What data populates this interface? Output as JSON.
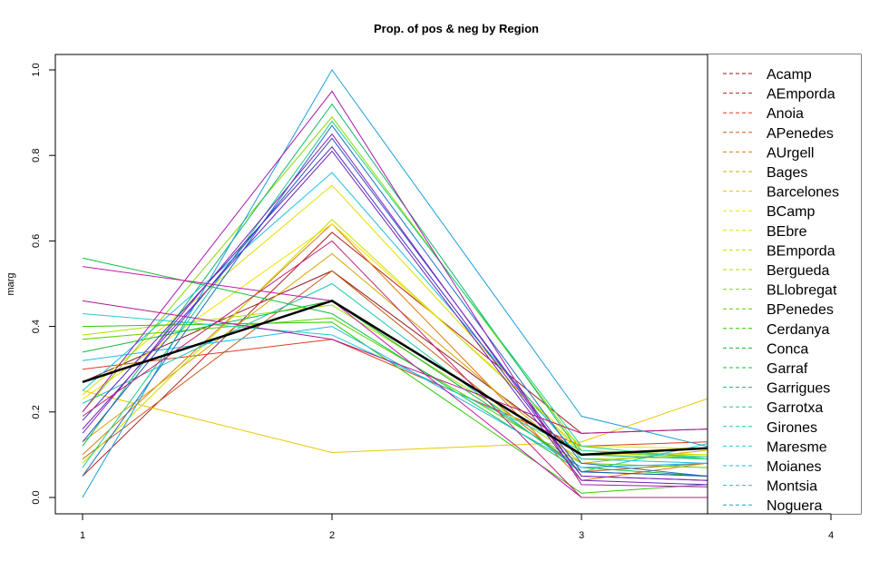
{
  "chart_data": {
    "type": "line",
    "title": "Prop. of pos & neg by Region",
    "xlabel": "",
    "ylabel": "marg",
    "x": [
      1,
      2,
      3,
      4
    ],
    "x_ticks": [
      "1",
      "2",
      "3",
      "4"
    ],
    "y_ticks": [
      "0.0",
      "0.2",
      "0.4",
      "0.6",
      "0.8",
      "1.0"
    ],
    "xlim": [
      1,
      4
    ],
    "ylim": [
      0,
      1
    ],
    "grid": false,
    "legend_position": "right",
    "series": [
      {
        "name": "Acamp",
        "color": "#8b1a1a",
        "values": [
          0.27,
          0.53,
          0.1,
          0.13
        ]
      },
      {
        "name": "AEmporda",
        "color": "#b22222",
        "values": [
          0.05,
          0.62,
          0.15,
          0.17
        ]
      },
      {
        "name": "Anoia",
        "color": "#e03c1f",
        "values": [
          0.3,
          0.37,
          0.12,
          0.14
        ]
      },
      {
        "name": "APenedes",
        "color": "#c85a1a",
        "values": [
          0.09,
          0.53,
          0.06,
          0.1
        ]
      },
      {
        "name": "AUrgell",
        "color": "#e07b10",
        "values": [
          0.1,
          0.64,
          0.04,
          0.12
        ]
      },
      {
        "name": "Bages",
        "color": "#d7a300",
        "values": [
          0.13,
          0.57,
          0.08,
          0.14
        ]
      },
      {
        "name": "Barcelones",
        "color": "#e8c800",
        "values": [
          0.25,
          0.105,
          0.13,
          0.33
        ]
      },
      {
        "name": "BCamp",
        "color": "#f2e200",
        "values": [
          0.23,
          0.64,
          0.12,
          0.11
        ]
      },
      {
        "name": "BEbre",
        "color": "#e0e000",
        "values": [
          0.24,
          0.73,
          0.1,
          0.1
        ]
      },
      {
        "name": "BEmporda",
        "color": "#c8e000",
        "values": [
          0.08,
          0.65,
          0.11,
          0.09
        ]
      },
      {
        "name": "Bergueda",
        "color": "#a8e000",
        "values": [
          0.38,
          0.45,
          0.09,
          0.1
        ]
      },
      {
        "name": "BLlobregat",
        "color": "#88d800",
        "values": [
          0.2,
          0.89,
          0.11,
          0.07
        ]
      },
      {
        "name": "BPenedes",
        "color": "#5ad000",
        "values": [
          0.37,
          0.42,
          0.08,
          0.06
        ]
      },
      {
        "name": "Cerdanya",
        "color": "#2ec800",
        "values": [
          0.4,
          0.41,
          0.01,
          0.05
        ]
      },
      {
        "name": "Conca",
        "color": "#14b830",
        "values": [
          0.34,
          0.46,
          0.07,
          0.03
        ]
      },
      {
        "name": "Garraf",
        "color": "#10c040",
        "values": [
          0.56,
          0.43,
          0.06,
          0.04
        ]
      },
      {
        "name": "Garrigues",
        "color": "#14b86a",
        "values": [
          0.12,
          0.92,
          0.1,
          0.08
        ]
      },
      {
        "name": "Garrotxa",
        "color": "#18d08c",
        "values": [
          0.07,
          0.88,
          0.12,
          0.06
        ]
      },
      {
        "name": "Girones",
        "color": "#18c8b0",
        "values": [
          0.22,
          0.5,
          0.06,
          0.19
        ]
      },
      {
        "name": "Maresme",
        "color": "#20d0d0",
        "values": [
          0.43,
          0.38,
          0.11,
          0.08
        ]
      },
      {
        "name": "Moianes",
        "color": "#18c0e0",
        "values": [
          0.25,
          0.76,
          0.09,
          0.07
        ]
      },
      {
        "name": "Montsia",
        "color": "#20b8e8",
        "values": [
          0.32,
          0.4,
          0.07,
          0.09
        ]
      },
      {
        "name": "Noguera",
        "color": "#1aa0d8",
        "values": [
          0.0,
          1.0,
          0.19,
          0.05
        ]
      },
      {
        "name": "",
        "color": "#1a70c8",
        "values": [
          0.05,
          0.87,
          0.08,
          0.02
        ]
      },
      {
        "name": "",
        "color": "#2850c0",
        "values": [
          0.13,
          0.84,
          0.06,
          0.04
        ]
      },
      {
        "name": "",
        "color": "#4a2cc0",
        "values": [
          0.18,
          0.82,
          0.05,
          0.03
        ]
      },
      {
        "name": "",
        "color": "#6a20c0",
        "values": [
          0.16,
          0.81,
          0.04,
          0.02
        ]
      },
      {
        "name": "",
        "color": "#8a1cb8",
        "values": [
          0.15,
          0.85,
          0.05,
          0.03
        ]
      },
      {
        "name": "",
        "color": "#a818b0",
        "values": [
          0.2,
          0.95,
          0.03,
          0.02
        ]
      },
      {
        "name": "",
        "color": "#c018a8",
        "values": [
          0.54,
          0.46,
          0.0,
          0.0
        ]
      },
      {
        "name": "",
        "color": "#b01890",
        "values": [
          0.46,
          0.37,
          0.15,
          0.17
        ]
      },
      {
        "name": "",
        "color": "#c02070",
        "values": [
          0.19,
          0.6,
          0.0,
          0.0
        ]
      },
      {
        "name": "",
        "color": "#000000",
        "values": [
          0.27,
          0.46,
          0.1,
          0.13
        ]
      }
    ]
  }
}
